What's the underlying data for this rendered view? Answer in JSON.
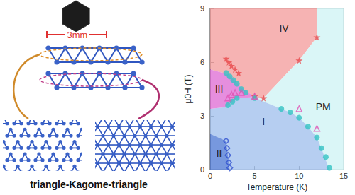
{
  "figure": {
    "scale_bar": "3mm",
    "caption": "triangle-Kagome-triangle"
  },
  "chart_data": {
    "type": "scatter",
    "x_label": "Temperature (K)",
    "y_label": "μ0H (T)",
    "xlim": [
      0,
      15
    ],
    "xticks": [
      0,
      5,
      10,
      15
    ],
    "ylim": [
      0,
      9
    ],
    "yticks": [
      0,
      3,
      6,
      9
    ],
    "grid": false,
    "regions": [
      {
        "label": "IV",
        "color": "#f4a6a6",
        "label_at": [
          8.3,
          7.9
        ],
        "boundary": [
          [
            0,
            9
          ],
          [
            12,
            9
          ],
          [
            12,
            7.4
          ],
          [
            10,
            6.1
          ],
          [
            6,
            4.0
          ],
          [
            5,
            4.05
          ],
          [
            3.5,
            4.6
          ],
          [
            2.2,
            5.3
          ],
          [
            0,
            5.6
          ]
        ]
      },
      {
        "label": "PM",
        "color": "#d4f4f6",
        "label_at": [
          12.7,
          3.5
        ],
        "boundary": [
          [
            12,
            9
          ],
          [
            15,
            9
          ],
          [
            15,
            0
          ],
          [
            13.4,
            0
          ],
          [
            12.5,
            1.2
          ],
          [
            12,
            1.8
          ],
          [
            11,
            2.4
          ],
          [
            10,
            2.9
          ],
          [
            9,
            3.2
          ],
          [
            8,
            3.4
          ],
          [
            6,
            3.8
          ],
          [
            5,
            4.05
          ],
          [
            6,
            4.0
          ],
          [
            10,
            6.1
          ],
          [
            12,
            7.4
          ]
        ]
      },
      {
        "label": "I",
        "color": "#a9c6ef",
        "label_at": [
          6,
          2.7
        ],
        "boundary": [
          [
            0,
            2.0
          ],
          [
            1.8,
            1.6
          ],
          [
            2.0,
            0.8
          ],
          [
            2.2,
            0
          ],
          [
            13.4,
            0
          ],
          [
            12.5,
            1.2
          ],
          [
            12,
            1.8
          ],
          [
            11,
            2.4
          ],
          [
            10,
            2.9
          ],
          [
            9,
            3.2
          ],
          [
            8,
            3.4
          ],
          [
            6,
            3.8
          ],
          [
            5,
            4.05
          ],
          [
            3,
            4.0
          ],
          [
            1.8,
            3.5
          ],
          [
            0,
            3.4
          ]
        ]
      },
      {
        "label": "II",
        "color": "#5f86d8",
        "label_at": [
          1.0,
          0.9
        ],
        "boundary": [
          [
            0,
            0
          ],
          [
            2.2,
            0
          ],
          [
            2.0,
            0.8
          ],
          [
            1.8,
            1.6
          ],
          [
            0,
            2.0
          ]
        ]
      },
      {
        "label": "III",
        "color": "#e27ad8",
        "label_at": [
          1.0,
          4.5
        ],
        "boundary": [
          [
            0,
            3.4
          ],
          [
            1.8,
            3.5
          ],
          [
            3,
            4.0
          ],
          [
            5,
            4.05
          ],
          [
            3.5,
            4.6
          ],
          [
            2.2,
            5.3
          ],
          [
            0,
            5.6
          ]
        ]
      }
    ],
    "series": [
      {
        "marker": "star",
        "color": "#e8474a",
        "x": [
          1.8,
          2.1,
          2.4,
          2.8,
          3.2,
          5,
          6,
          10,
          12
        ],
        "y": [
          6.2,
          6.0,
          5.8,
          5.6,
          5.4,
          4.1,
          4.0,
          6.1,
          7.4
        ]
      },
      {
        "marker": "circle",
        "color": "#35c3c3",
        "x": [
          1.8,
          2.2,
          2.6,
          3.0,
          3.5,
          4,
          5,
          8,
          9,
          10,
          11,
          12,
          12.5,
          13,
          13.4,
          2.0,
          2.5,
          3.0
        ],
        "y": [
          5.4,
          5.2,
          5.0,
          4.8,
          4.5,
          4.3,
          4.0,
          3.4,
          3.2,
          2.9,
          2.4,
          1.8,
          1.2,
          0.7,
          0.1,
          3.6,
          3.8,
          4.0
        ]
      },
      {
        "marker": "triangle-open",
        "color": "#e055b5",
        "x": [
          2.0,
          2.4,
          2.8,
          3.5,
          5,
          10,
          12
        ],
        "y": [
          4.0,
          4.2,
          4.3,
          4.3,
          4.1,
          3.4,
          2.3
        ]
      },
      {
        "marker": "diamond-open",
        "color": "#3050d0",
        "x": [
          1.8,
          1.9,
          2.0,
          2.1,
          2.2
        ],
        "y": [
          1.6,
          1.2,
          0.8,
          0.4,
          0.1
        ]
      }
    ]
  }
}
